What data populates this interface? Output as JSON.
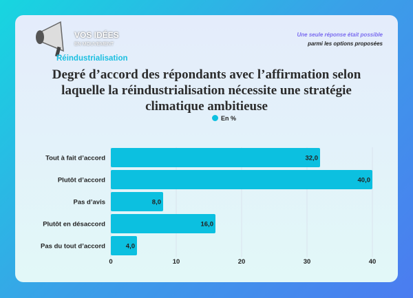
{
  "header": {
    "logo_text": "VOS IDÉES EN MOUVEMENT",
    "section": "Réindustrialisation",
    "note_line1": "Une seule réponse était possible",
    "note_line2": "parmi les options proposées"
  },
  "chart_data": {
    "type": "bar",
    "orientation": "horizontal",
    "title": "Degré d’accord des répondants avec l’affirmation selon laquelle la réindustrialisation nécessite une stratégie climatique ambitieuse",
    "categories": [
      "Tout à fait d’accord",
      "Plutôt d’accord",
      "Pas d’avis",
      "Plutôt en désaccord",
      "Pas du tout d’accord"
    ],
    "series": [
      {
        "name": "En %",
        "values": [
          32.0,
          40.0,
          8.0,
          16.0,
          4.0
        ]
      }
    ],
    "data_labels": [
      "32,0",
      "40,0",
      "8,0",
      "16,0",
      "4,0"
    ],
    "xlim": [
      0,
      40
    ],
    "xticks": [
      0,
      10,
      20,
      30,
      40
    ],
    "grid": true,
    "legend": "top-center",
    "colors": {
      "bar": "#0cc0e0"
    }
  }
}
